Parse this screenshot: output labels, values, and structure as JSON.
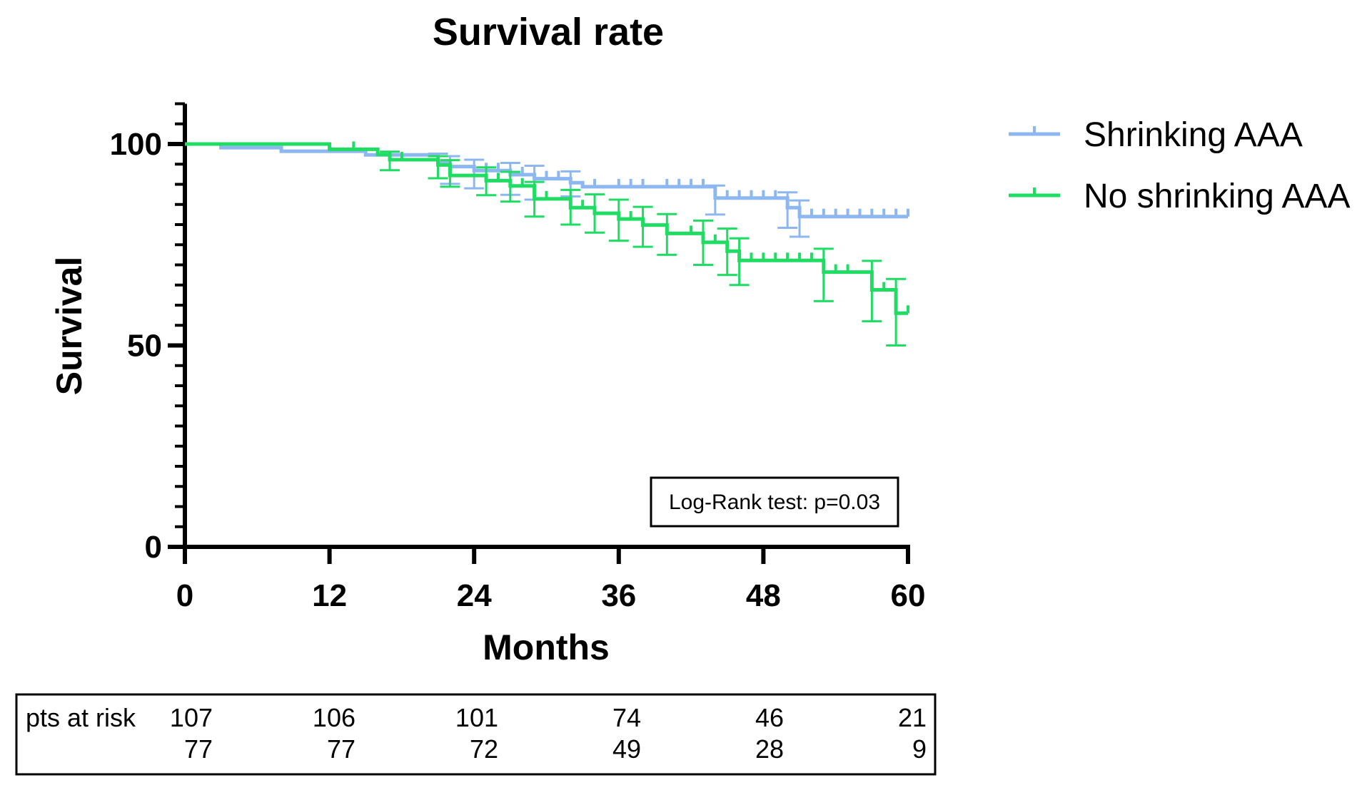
{
  "chart_data": {
    "type": "line",
    "subtype": "kaplan-meier step with censor ticks and error bars",
    "title": "Survival rate",
    "xlabel": "Months",
    "ylabel": "Survival",
    "xlim": [
      0,
      60
    ],
    "ylim": [
      0,
      110
    ],
    "x_ticks": [
      0,
      12,
      24,
      36,
      48,
      60
    ],
    "y_ticks": [
      0,
      50,
      100
    ],
    "y_minor_step": 5,
    "grid": false,
    "legend_position": "top-right, outside plot",
    "series": [
      {
        "name": "Shrinking AAA",
        "color": "#8db7f0",
        "steps": [
          [
            0,
            100
          ],
          [
            3,
            99.1
          ],
          [
            8,
            98.2
          ],
          [
            15,
            97.3
          ],
          [
            21,
            95.4
          ],
          [
            22,
            94.4
          ],
          [
            24,
            93.4
          ],
          [
            27,
            92.4
          ],
          [
            29,
            91.4
          ],
          [
            32,
            90.4
          ],
          [
            33,
            89.4
          ],
          [
            44,
            86.6
          ],
          [
            50,
            84.2
          ],
          [
            51,
            82.0
          ],
          [
            60,
            82.0
          ]
        ],
        "error_bars": [
          {
            "x": 21,
            "y": 95.4,
            "lo": 91.5,
            "hi": 97.6
          },
          {
            "x": 22,
            "y": 94.4,
            "lo": 90.1,
            "hi": 97.0
          },
          {
            "x": 24,
            "y": 93.4,
            "lo": 89.0,
            "hi": 96.1
          },
          {
            "x": 27,
            "y": 92.4,
            "lo": 87.4,
            "hi": 95.3
          },
          {
            "x": 29,
            "y": 91.4,
            "lo": 86.2,
            "hi": 94.6
          },
          {
            "x": 32,
            "y": 90.4,
            "lo": 87.0,
            "hi": 93.2
          },
          {
            "x": 44,
            "y": 86.6,
            "lo": 82.5,
            "hi": 89.7
          },
          {
            "x": 50,
            "y": 84.2,
            "lo": 79.2,
            "hi": 88.0
          },
          {
            "x": 51,
            "y": 82.0,
            "lo": 77.0,
            "hi": 86.0
          }
        ],
        "censor_marks": [
          25,
          26,
          28,
          30,
          31,
          34,
          36,
          37,
          38,
          40,
          41,
          42,
          43,
          45,
          46,
          47,
          48,
          49,
          52,
          53,
          54,
          55,
          56,
          57,
          58,
          59,
          60
        ]
      },
      {
        "name": "No shrinking AAA",
        "color": "#1fdc63",
        "steps": [
          [
            0,
            100
          ],
          [
            12,
            98.7
          ],
          [
            16,
            97.4
          ],
          [
            17,
            96.1
          ],
          [
            21,
            94.8
          ],
          [
            22,
            92.2
          ],
          [
            25,
            90.9
          ],
          [
            27,
            89.6
          ],
          [
            29,
            86.4
          ],
          [
            32,
            84.2
          ],
          [
            34,
            82.8
          ],
          [
            36,
            81.4
          ],
          [
            38,
            79.9
          ],
          [
            40,
            77.8
          ],
          [
            43,
            75.6
          ],
          [
            45,
            73.4
          ],
          [
            46,
            71.1
          ],
          [
            53,
            68.2
          ],
          [
            57,
            63.8
          ],
          [
            59,
            58.0
          ],
          [
            60,
            58.0
          ]
        ],
        "error_bars": [
          {
            "x": 17,
            "y": 96.1,
            "lo": 93.5,
            "hi": 98.1
          },
          {
            "x": 21,
            "y": 94.8,
            "lo": 91.5,
            "hi": 97.0
          },
          {
            "x": 22,
            "y": 92.2,
            "lo": 89.4,
            "hi": 96.0
          },
          {
            "x": 25,
            "y": 90.9,
            "lo": 87.3,
            "hi": 94.2
          },
          {
            "x": 27,
            "y": 89.6,
            "lo": 85.7,
            "hi": 93.1
          },
          {
            "x": 29,
            "y": 86.4,
            "lo": 82.0,
            "hi": 90.6
          },
          {
            "x": 32,
            "y": 84.2,
            "lo": 80.0,
            "hi": 88.6
          },
          {
            "x": 34,
            "y": 82.8,
            "lo": 78.0,
            "hi": 87.5
          },
          {
            "x": 36,
            "y": 81.4,
            "lo": 76.0,
            "hi": 86.2
          },
          {
            "x": 38,
            "y": 79.9,
            "lo": 74.5,
            "hi": 84.4
          },
          {
            "x": 40,
            "y": 77.8,
            "lo": 72.5,
            "hi": 82.6
          },
          {
            "x": 43,
            "y": 75.6,
            "lo": 70.0,
            "hi": 81.0
          },
          {
            "x": 45,
            "y": 73.4,
            "lo": 67.5,
            "hi": 79.0
          },
          {
            "x": 46,
            "y": 71.1,
            "lo": 65.0,
            "hi": 76.6
          },
          {
            "x": 53,
            "y": 68.2,
            "lo": 61.0,
            "hi": 74.0
          },
          {
            "x": 57,
            "y": 63.8,
            "lo": 56.0,
            "hi": 71.0
          },
          {
            "x": 59,
            "y": 58.0,
            "lo": 50.0,
            "hi": 66.5
          }
        ],
        "censor_marks": [
          14,
          18,
          26,
          28,
          30,
          33,
          37,
          42,
          44,
          47,
          48,
          49,
          50,
          51,
          52,
          54,
          55,
          58,
          60
        ]
      }
    ],
    "annotation": "Log-Rank test: p=0.03",
    "risk_table": {
      "label": "pts at risk",
      "times": [
        0,
        12,
        24,
        36,
        48,
        60
      ],
      "rows": [
        [
          "107",
          "106",
          "101",
          "74",
          "46",
          "21"
        ],
        [
          "77",
          "77",
          "72",
          "49",
          "28",
          "9"
        ]
      ]
    }
  }
}
